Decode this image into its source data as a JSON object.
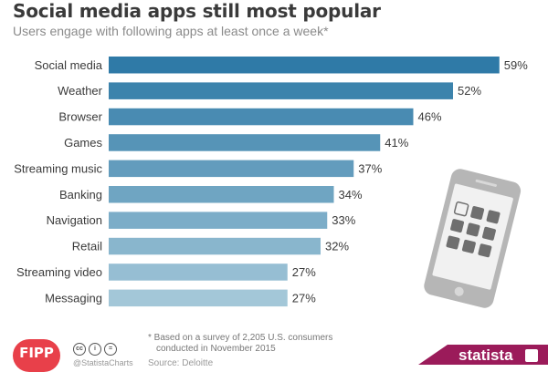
{
  "chart_data": {
    "type": "bar",
    "orientation": "horizontal",
    "title": "Social media apps still most popular",
    "subtitle": "Users engage with following apps at least once a week*",
    "categories": [
      "Social media",
      "Weather",
      "Browser",
      "Games",
      "Streaming music",
      "Banking",
      "Navigation",
      "Retail",
      "Streaming video",
      "Messaging"
    ],
    "values": [
      59,
      52,
      46,
      41,
      37,
      34,
      33,
      32,
      27,
      27
    ],
    "value_suffix": "%",
    "xlim": [
      0,
      60
    ],
    "grid": false,
    "bar_color_start": "#2f7aa7",
    "bar_color_end": "#a3c7d8"
  },
  "footnote": {
    "line1": "* Based on a survey of 2,205 U.S. consumers",
    "line2": "conducted in November 2015"
  },
  "source": "Source: Deloitte",
  "branding": {
    "fipp": "FIPP",
    "handle": "@StatistaCharts",
    "statista": "statista",
    "statista_color": "#9b1b5a",
    "cc_icons": [
      "cc-icon",
      "by-icon",
      "nd-icon"
    ]
  }
}
